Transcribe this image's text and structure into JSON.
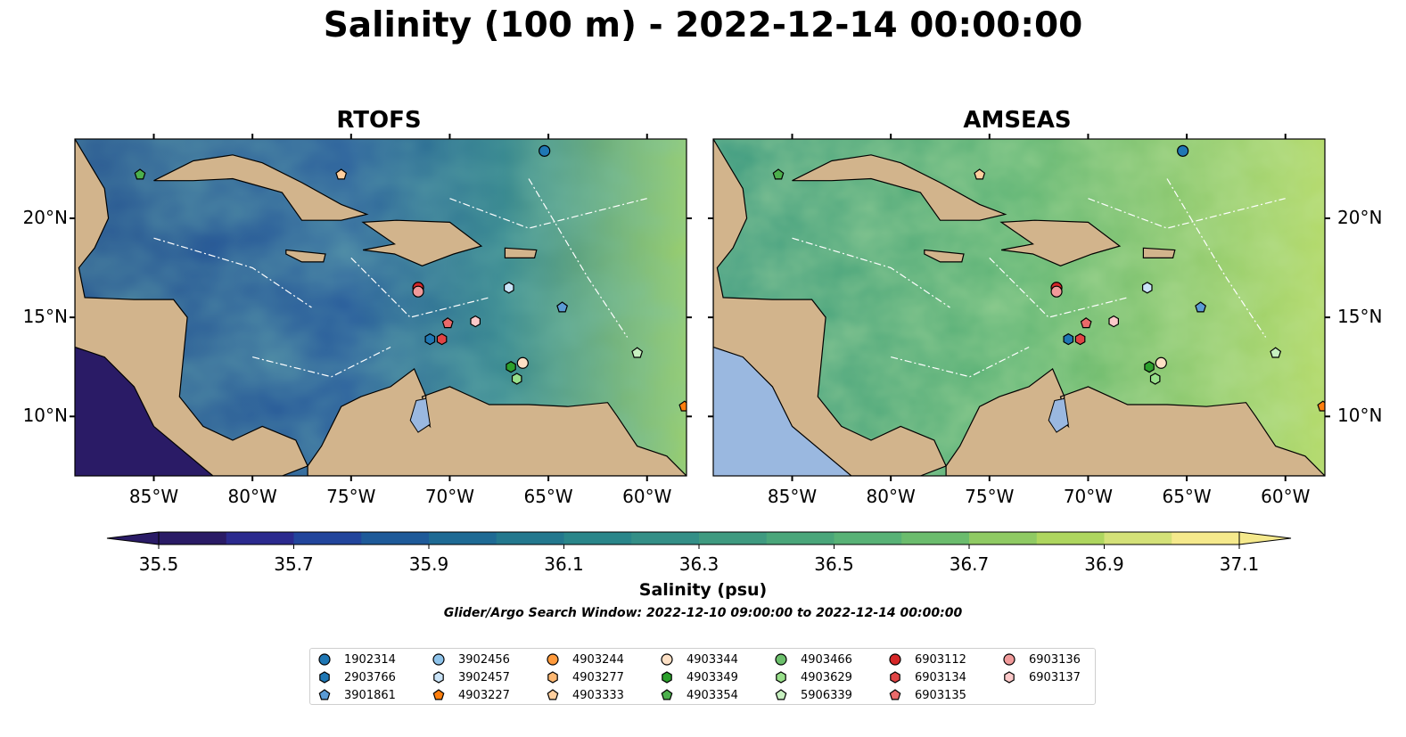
{
  "title": "Salinity (100 m) - 2022-12-14 00:00:00",
  "panels": [
    {
      "title": "RTOFS"
    },
    {
      "title": "AMSEAS"
    }
  ],
  "axes": {
    "lon_ticks": [
      "85°W",
      "80°W",
      "75°W",
      "70°W",
      "65°W",
      "60°W"
    ],
    "lat_ticks": [
      "20°N",
      "15°N",
      "10°N"
    ],
    "lon_range": [
      -89,
      -58
    ],
    "lat_range": [
      7,
      24
    ]
  },
  "colorbar": {
    "ticks": [
      "35.5",
      "35.7",
      "35.9",
      "36.1",
      "36.3",
      "36.5",
      "36.7",
      "36.9",
      "37.1"
    ],
    "range": [
      35.5,
      37.1
    ],
    "label": "Salinity (psu)",
    "colors": [
      "#2a1b66",
      "#2b2a8e",
      "#22459c",
      "#1e5a99",
      "#1e6a94",
      "#23788e",
      "#2a868a",
      "#348f87",
      "#3f9a80",
      "#4aa67a",
      "#58b276",
      "#6bbc6d",
      "#8fca63",
      "#aed65f",
      "#d4e178",
      "#f5e98c"
    ]
  },
  "window_note": "Glider/Argo Search Window: 2022-12-10 09:00:00 to 2022-12-14 00:00:00",
  "colors": {
    "land": "#d2b48c",
    "ocean_outside": "#9ab8e0",
    "river": "#a9bede"
  },
  "legend": [
    {
      "label": "1902314",
      "marker": "circle",
      "color": "#1f77b4"
    },
    {
      "label": "2903766",
      "marker": "hexagon",
      "color": "#1f77b4"
    },
    {
      "label": "3901861",
      "marker": "pentagon",
      "color": "#5b9bd5"
    },
    {
      "label": "3902456",
      "marker": "circle",
      "color": "#8ec3ea"
    },
    {
      "label": "3902457",
      "marker": "hexagon",
      "color": "#c9e3f7"
    },
    {
      "label": "4903227",
      "marker": "pentagon",
      "color": "#ff7f0e"
    },
    {
      "label": "4903244",
      "marker": "circle",
      "color": "#ff9a3c"
    },
    {
      "label": "4903277",
      "marker": "hexagon",
      "color": "#ffb872"
    },
    {
      "label": "4903333",
      "marker": "pentagon",
      "color": "#ffcf9e"
    },
    {
      "label": "4903344",
      "marker": "circle",
      "color": "#fde0c5"
    },
    {
      "label": "4903349",
      "marker": "hexagon",
      "color": "#2ca02c"
    },
    {
      "label": "4903354",
      "marker": "pentagon",
      "color": "#4cb04c"
    },
    {
      "label": "4903466",
      "marker": "circle",
      "color": "#6cc06c"
    },
    {
      "label": "4903629",
      "marker": "hexagon",
      "color": "#98df8a"
    },
    {
      "label": "5906339",
      "marker": "pentagon",
      "color": "#c7f0c0"
    },
    {
      "label": "6903112",
      "marker": "circle",
      "color": "#d62728"
    },
    {
      "label": "6903134",
      "marker": "hexagon",
      "color": "#e04445"
    },
    {
      "label": "6903135",
      "marker": "pentagon",
      "color": "#ea6a6a"
    },
    {
      "label": "6903136",
      "marker": "circle",
      "color": "#f19a9a"
    },
    {
      "label": "6903137",
      "marker": "hexagon",
      "color": "#fcc9c9"
    }
  ],
  "floats": [
    {
      "id": "1902314",
      "lon": -65.2,
      "lat": 23.4
    },
    {
      "id": "3901861",
      "lon": -64.3,
      "lat": 15.5
    },
    {
      "id": "3902457",
      "lon": -67.0,
      "lat": 16.5
    },
    {
      "id": "2903766",
      "lon": -71.0,
      "lat": 13.9
    },
    {
      "id": "6903134",
      "lon": -70.4,
      "lat": 13.9
    },
    {
      "id": "6903135",
      "lon": -70.1,
      "lat": 14.7
    },
    {
      "id": "6903137",
      "lon": -68.7,
      "lat": 14.8
    },
    {
      "id": "6903112",
      "lon": -71.6,
      "lat": 16.5
    },
    {
      "id": "6903136",
      "lon": -71.6,
      "lat": 16.3
    },
    {
      "id": "4903344",
      "lon": -66.3,
      "lat": 12.7
    },
    {
      "id": "4903349",
      "lon": -66.9,
      "lat": 12.5
    },
    {
      "id": "4903629",
      "lon": -66.6,
      "lat": 11.9
    },
    {
      "id": "5906339",
      "lon": -60.5,
      "lat": 13.2
    },
    {
      "id": "4903354",
      "lon": -85.7,
      "lat": 22.2
    },
    {
      "id": "4903333",
      "lon": -75.5,
      "lat": 22.2
    },
    {
      "id": "4903227",
      "lon": -58.1,
      "lat": 10.5
    }
  ]
}
